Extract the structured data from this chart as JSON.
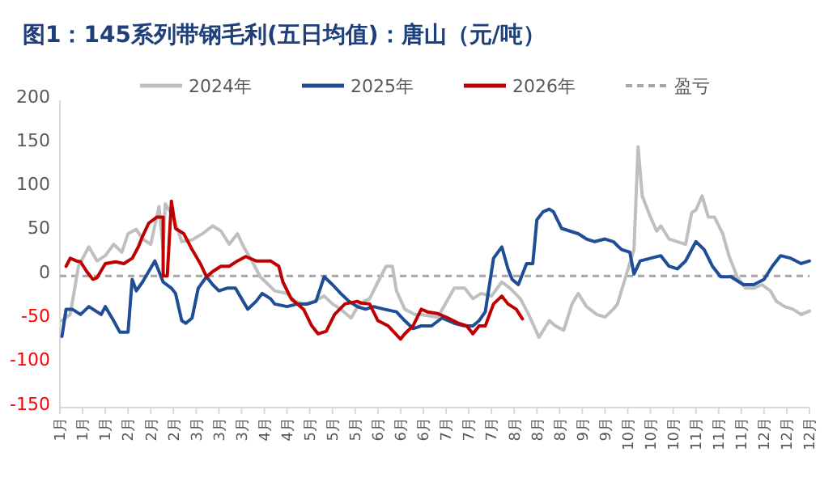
{
  "chart_data": {
    "type": "line",
    "title": "图1：145系列带钢毛利(五日均值)：唐山（元/吨）",
    "legend": "top",
    "grid": false,
    "xlim": [
      "--01-01",
      "--12-30"
    ],
    "xticks": [
      {
        "value": "--01-01",
        "label": "1月"
      },
      {
        "value": "--01-12",
        "label": "1月"
      },
      {
        "value": "--01-23",
        "label": "1月"
      },
      {
        "value": "--02-03",
        "label": "2月"
      },
      {
        "value": "--02-14",
        "label": "2月"
      },
      {
        "value": "--02-25",
        "label": "2月"
      },
      {
        "value": "--03-08",
        "label": "3月"
      },
      {
        "value": "--03-19",
        "label": "3月"
      },
      {
        "value": "--03-30",
        "label": "3月"
      },
      {
        "value": "--04-10",
        "label": "4月"
      },
      {
        "value": "--04-21",
        "label": "4月"
      },
      {
        "value": "--05-02",
        "label": "5月"
      },
      {
        "value": "--05-13",
        "label": "5月"
      },
      {
        "value": "--05-24",
        "label": "5月"
      },
      {
        "value": "--06-04",
        "label": "6月"
      },
      {
        "value": "--06-15",
        "label": "6月"
      },
      {
        "value": "--06-26",
        "label": "6月"
      },
      {
        "value": "--07-07",
        "label": "7月"
      },
      {
        "value": "--07-18",
        "label": "7月"
      },
      {
        "value": "--07-29",
        "label": "7月"
      },
      {
        "value": "--08-09",
        "label": "8月"
      },
      {
        "value": "--08-20",
        "label": "8月"
      },
      {
        "value": "--08-31",
        "label": "8月"
      },
      {
        "value": "--09-11",
        "label": "9月"
      },
      {
        "value": "--09-22",
        "label": "9月"
      },
      {
        "value": "--10-03",
        "label": "10月"
      },
      {
        "value": "--10-14",
        "label": "10月"
      },
      {
        "value": "--10-25",
        "label": "10月"
      },
      {
        "value": "--11-05",
        "label": "11月"
      },
      {
        "value": "--11-16",
        "label": "11月"
      },
      {
        "value": "--11-27",
        "label": "11月"
      },
      {
        "value": "--12-08",
        "label": "12月"
      },
      {
        "value": "--12-19",
        "label": "12月"
      },
      {
        "value": "--12-30",
        "label": "12月"
      }
    ],
    "ylim": [
      -150,
      200
    ],
    "yticks": [
      -150,
      -100,
      -50,
      0,
      50,
      100,
      150,
      200
    ],
    "ref_lines": [
      {
        "axis": "y",
        "value": 0,
        "label": "盈亏",
        "color": "#a6a6a6",
        "line_style": "dashed"
      }
    ],
    "series": [
      {
        "name": "2024年",
        "color": "#bfbfbf",
        "x": [
          "--01-02",
          "--01-06",
          "--01-10",
          "--01-15",
          "--01-19",
          "--01-23",
          "--01-27",
          "--01-31",
          "--02-03",
          "--02-07",
          "--02-10",
          "--02-14",
          "--02-18",
          "--02-20",
          "--02-21",
          "--02-25",
          "--03-01",
          "--03-06",
          "--03-11",
          "--03-16",
          "--03-20",
          "--03-24",
          "--03-28",
          "--03-31",
          "--04-04",
          "--04-08",
          "--04-12",
          "--04-15",
          "--04-21",
          "--04-25",
          "--04-29",
          "--05-04",
          "--05-09",
          "--05-13",
          "--05-17",
          "--05-22",
          "--05-26",
          "--05-31",
          "--06-04",
          "--06-08",
          "--06-11",
          "--06-13",
          "--06-17",
          "--06-22",
          "--06-25",
          "--07-03",
          "--07-11",
          "--07-16",
          "--07-20",
          "--07-24",
          "--07-29",
          "--08-03",
          "--08-07",
          "--08-12",
          "--08-16",
          "--08-21",
          "--08-26",
          "--08-29",
          "--09-02",
          "--09-06",
          "--09-09",
          "--09-13",
          "--09-18",
          "--09-22",
          "--09-26",
          "--09-28",
          "--10-02",
          "--10-06",
          "--10-08",
          "--10-10",
          "--10-14",
          "--10-17",
          "--10-19",
          "--10-23",
          "--10-27",
          "--10-31",
          "--11-03",
          "--11-05",
          "--11-08",
          "--11-11",
          "--11-14",
          "--11-18",
          "--11-21",
          "--11-25",
          "--11-29",
          "--12-03",
          "--12-07",
          "--12-11",
          "--12-14",
          "--12-18",
          "--12-22",
          "--12-26",
          "--12-30"
        ],
        "values": [
          -51,
          -44,
          11,
          33,
          17,
          23,
          36,
          27,
          48,
          53,
          42,
          36,
          79,
          30,
          82,
          67,
          39,
          41,
          48,
          57,
          51,
          36,
          48,
          33,
          17,
          -1,
          -10,
          -17,
          -20,
          -29,
          -32,
          -29,
          -23,
          -32,
          -38,
          -48,
          -32,
          -26,
          -7,
          11,
          11,
          -17,
          -38,
          -44,
          -44,
          -47,
          -14,
          -14,
          -26,
          -20,
          -23,
          -7,
          -14,
          -26,
          -44,
          -70,
          -51,
          -57,
          -62,
          -32,
          -20,
          -35,
          -44,
          -47,
          -38,
          -32,
          -1,
          30,
          147,
          91,
          67,
          51,
          57,
          42,
          39,
          36,
          72,
          75,
          91,
          67,
          67,
          48,
          23,
          -1,
          -14,
          -14,
          -10,
          -17,
          -29,
          -35,
          -38,
          -44,
          -40
        ]
      },
      {
        "name": "2025年",
        "color": "#1f4e96",
        "x": [
          "--01-02",
          "--01-04",
          "--01-07",
          "--01-11",
          "--01-15",
          "--01-21",
          "--01-23",
          "--01-27",
          "--01-30",
          "--02-03",
          "--02-05",
          "--02-07",
          "--02-10",
          "--02-16",
          "--02-20",
          "--02-24",
          "--02-26",
          "--03-01",
          "--03-03",
          "--03-06",
          "--03-09",
          "--03-13",
          "--03-16",
          "--03-19",
          "--03-23",
          "--03-27",
          "--03-30",
          "--04-02",
          "--04-06",
          "--04-09",
          "--04-13",
          "--04-15",
          "--04-21",
          "--04-26",
          "--05-01",
          "--05-05",
          "--05-09",
          "--05-13",
          "--05-17",
          "--05-21",
          "--05-25",
          "--05-29",
          "--06-02",
          "--06-07",
          "--06-13",
          "--06-17",
          "--06-21",
          "--06-25",
          "--06-30",
          "--07-05",
          "--07-11",
          "--07-16",
          "--07-20",
          "--07-23",
          "--07-26",
          "--07-30",
          "--08-03",
          "--08-06",
          "--08-08",
          "--08-11",
          "--08-15",
          "--08-18",
          "--08-20",
          "--08-23",
          "--08-26",
          "--08-28",
          "--09-01",
          "--09-05",
          "--09-09",
          "--09-13",
          "--09-17",
          "--09-22",
          "--09-26",
          "--09-30",
          "--10-04",
          "--10-06",
          "--10-09",
          "--10-14",
          "--10-19",
          "--10-23",
          "--10-27",
          "--10-31",
          "--11-05",
          "--11-09",
          "--11-13",
          "--11-17",
          "--11-22",
          "--11-28",
          "--12-03",
          "--12-08",
          "--12-12",
          "--12-16",
          "--12-21",
          "--12-26",
          "--12-30"
        ],
        "values": [
          -69,
          -38,
          -38,
          -44,
          -35,
          -44,
          -35,
          -51,
          -64,
          -64,
          -4,
          -17,
          -7,
          17,
          -7,
          -14,
          -20,
          -51,
          -54,
          -48,
          -14,
          -1,
          -10,
          -17,
          -14,
          -14,
          -26,
          -38,
          -29,
          -20,
          -26,
          -32,
          -35,
          -32,
          -32,
          -29,
          -1,
          -10,
          -20,
          -29,
          -35,
          -38,
          -35,
          -38,
          -41,
          -51,
          -60,
          -57,
          -57,
          -48,
          -54,
          -57,
          -57,
          -51,
          -41,
          20,
          33,
          8,
          -4,
          -10,
          14,
          14,
          64,
          73,
          76,
          73,
          54,
          51,
          48,
          42,
          39,
          42,
          39,
          30,
          27,
          2,
          17,
          20,
          23,
          11,
          8,
          17,
          39,
          30,
          11,
          -1,
          -1,
          -10,
          -10,
          -4,
          11,
          23,
          20,
          14,
          17
        ]
      },
      {
        "name": "2026年",
        "color": "#c00000",
        "x": [
          "--01-04",
          "--01-06",
          "--01-09",
          "--01-11",
          "--01-14",
          "--01-17",
          "--01-19",
          "--01-23",
          "--01-28",
          "--02-01",
          "--02-05",
          "--02-08",
          "--02-10",
          "--02-13",
          "--02-17",
          "--02-20",
          "--02-20",
          "--02-22",
          "--02-24",
          "--02-26",
          "--03-02",
          "--03-06",
          "--03-10",
          "--03-13",
          "--03-16",
          "--03-20",
          "--03-24",
          "--03-28",
          "--04-01",
          "--04-06",
          "--04-13",
          "--04-17",
          "--04-19",
          "--04-23",
          "--04-29",
          "--05-03",
          "--05-06",
          "--05-10",
          "--05-14",
          "--05-19",
          "--05-25",
          "--05-27",
          "--05-31",
          "--06-04",
          "--06-09",
          "--06-15",
          "--06-17",
          "--06-21",
          "--06-25",
          "--06-28",
          "--07-03",
          "--07-08",
          "--07-13",
          "--07-17",
          "--07-20",
          "--07-23",
          "--07-26",
          "--07-30",
          "--08-03",
          "--08-06",
          "--08-10",
          "--08-13"
        ],
        "values": [
          11,
          20,
          17,
          16,
          5,
          -4,
          -2,
          14,
          16,
          14,
          20,
          33,
          45,
          60,
          67,
          67,
          0,
          0,
          85,
          54,
          48,
          30,
          14,
          -1,
          5,
          11,
          11,
          17,
          22,
          17,
          17,
          11,
          -7,
          -26,
          -38,
          -57,
          -66,
          -63,
          -44,
          -32,
          -29,
          -31,
          -32,
          -51,
          -57,
          -72,
          -66,
          -57,
          -38,
          -41,
          -43,
          -48,
          -54,
          -57,
          -66,
          -57,
          -57,
          -32,
          -23,
          -32,
          -38,
          -49
        ]
      }
    ]
  }
}
